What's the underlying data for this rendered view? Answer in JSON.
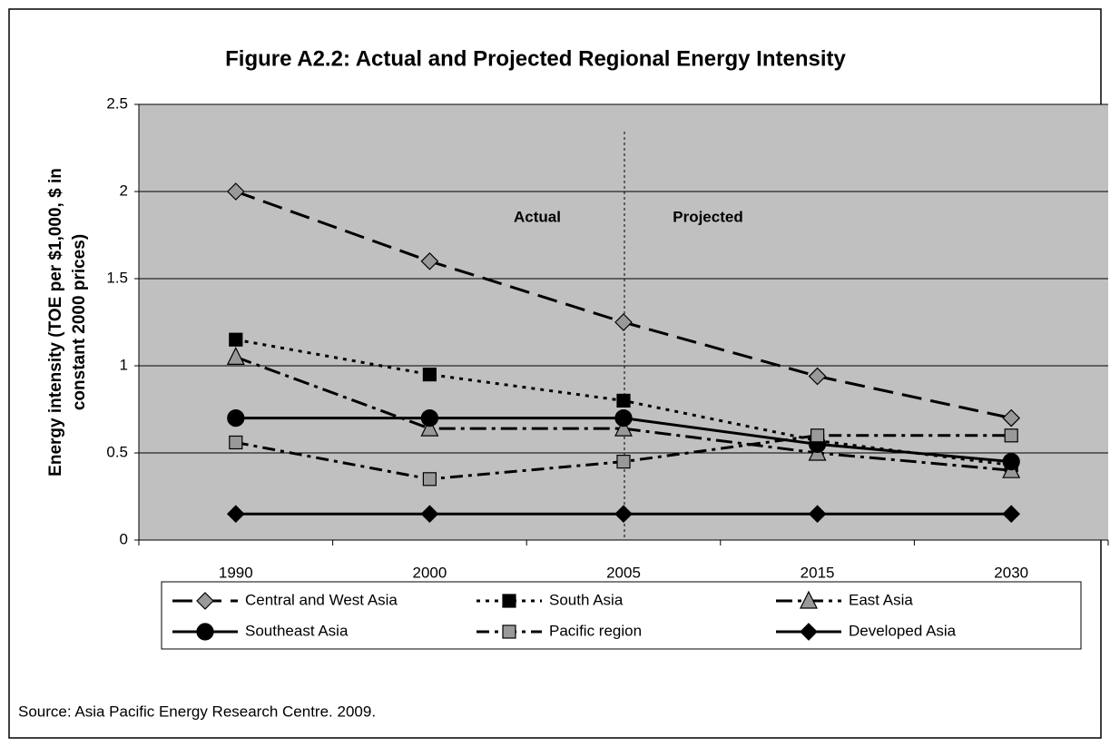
{
  "chart_data": {
    "type": "line",
    "title": "Figure A2.2: Actual and Projected Regional Energy Intensity",
    "ylabel": [
      "Energy intensity (TOE per $1,000, $ in",
      "constant 2000 prices)"
    ],
    "categories": [
      "1990",
      "2000",
      "2005",
      "2015",
      "2030"
    ],
    "series": [
      {
        "name": "Central and West Asia",
        "color": "#999999",
        "marker": "diamond",
        "dash": "22,10",
        "values": [
          2.0,
          1.6,
          1.25,
          0.94,
          0.7
        ]
      },
      {
        "name": "South Asia",
        "color": "#000000",
        "marker": "square",
        "dash": "4,6",
        "values": [
          1.15,
          0.95,
          0.8,
          0.57,
          0.43
        ]
      },
      {
        "name": "East Asia",
        "color": "#999999",
        "marker": "triangle",
        "dash": "18,6,4,6",
        "values": [
          1.05,
          0.64,
          0.64,
          0.5,
          0.4
        ]
      },
      {
        "name": "Southeast Asia",
        "color": "#000000",
        "marker": "circle",
        "dash": "none",
        "values": [
          0.7,
          0.7,
          0.7,
          0.55,
          0.45
        ]
      },
      {
        "name": "Pacific region",
        "color": "#999999",
        "marker": "square",
        "dash": "14,6,4,6",
        "values": [
          0.56,
          0.35,
          0.45,
          0.6,
          0.6
        ]
      },
      {
        "name": "Developed Asia",
        "color": "#000000",
        "marker": "diamond",
        "dash": "none",
        "values": [
          0.15,
          0.15,
          0.15,
          0.15,
          0.15
        ]
      }
    ],
    "ylim": [
      0,
      2.5
    ],
    "yticks": [
      0,
      0.5,
      1,
      1.5,
      2,
      2.5
    ],
    "grid": true,
    "annotations": [
      "Actual",
      "Projected"
    ],
    "source": "Source: Asia Pacific Energy Research Centre. 2009."
  }
}
